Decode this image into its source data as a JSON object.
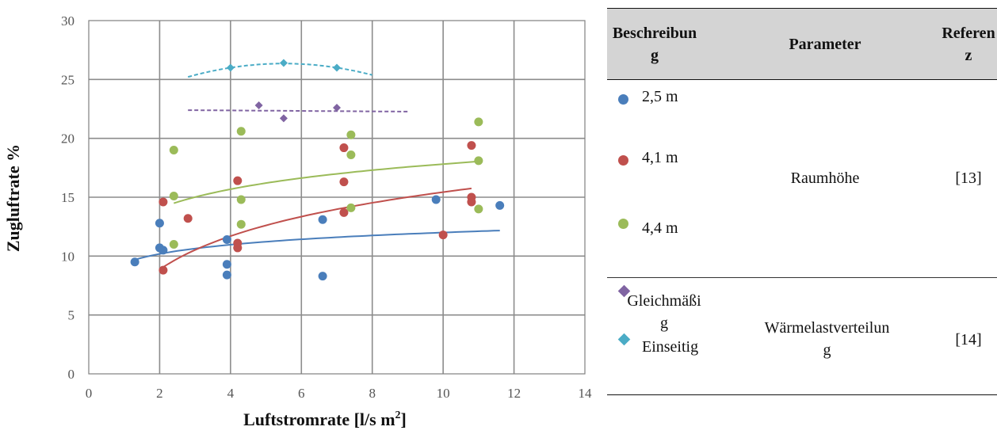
{
  "colors": {
    "blue": "#4a7ebb",
    "red": "#c0504d",
    "green": "#9bbb59",
    "purple": "#8064a2",
    "cyan": "#4bacc6"
  },
  "chart_data": {
    "type": "scatter",
    "xlabel": "Luftstromrate [l/s m",
    "xlabel_sup": "2",
    "xlabel_end": "]",
    "ylabel": "Zugluftrate %",
    "xlim": [
      0,
      14
    ],
    "ylim": [
      0,
      30
    ],
    "xticks": [
      "0",
      "2",
      "4",
      "6",
      "8",
      "10",
      "12",
      "14"
    ],
    "yticks": [
      "0",
      "5",
      "10",
      "15",
      "20",
      "25",
      "30"
    ],
    "grid": true,
    "series": [
      {
        "name": "2,5 m",
        "color": "#4a7ebb",
        "marker": "circle",
        "points": [
          [
            1.3,
            9.5
          ],
          [
            2.0,
            12.8
          ],
          [
            2.0,
            10.7
          ],
          [
            2.1,
            10.5
          ],
          [
            3.9,
            11.4
          ],
          [
            3.9,
            9.3
          ],
          [
            3.9,
            8.4
          ],
          [
            6.6,
            13.1
          ],
          [
            6.6,
            8.3
          ],
          [
            9.8,
            14.8
          ],
          [
            11.6,
            14.3
          ]
        ],
        "trend": {
          "type": "log",
          "a": 9.4,
          "b": 1.13,
          "x_range": [
            1.3,
            11.6
          ],
          "style": "solid"
        }
      },
      {
        "name": "4,1 m",
        "color": "#c0504d",
        "marker": "circle",
        "points": [
          [
            2.1,
            14.6
          ],
          [
            2.1,
            8.8
          ],
          [
            2.8,
            13.2
          ],
          [
            4.2,
            16.4
          ],
          [
            4.2,
            11.1
          ],
          [
            4.2,
            10.7
          ],
          [
            7.2,
            19.2
          ],
          [
            7.2,
            16.3
          ],
          [
            7.2,
            13.7
          ],
          [
            10.0,
            11.8
          ],
          [
            10.8,
            19.4
          ],
          [
            10.8,
            15.0
          ],
          [
            10.8,
            14.6
          ]
        ],
        "trend": {
          "type": "log",
          "a": 6.04,
          "b": 4.08,
          "x_range": [
            2.1,
            10.8
          ],
          "style": "solid"
        }
      },
      {
        "name": "4,4 m",
        "color": "#9bbb59",
        "marker": "circle",
        "points": [
          [
            2.4,
            19.0
          ],
          [
            2.4,
            15.1
          ],
          [
            2.4,
            11.0
          ],
          [
            4.3,
            20.6
          ],
          [
            4.3,
            14.8
          ],
          [
            4.3,
            12.7
          ],
          [
            7.4,
            20.3
          ],
          [
            7.4,
            18.6
          ],
          [
            7.4,
            14.1
          ],
          [
            11.0,
            21.4
          ],
          [
            11.0,
            18.1
          ],
          [
            11.0,
            14.0
          ]
        ],
        "trend": {
          "type": "log",
          "a": 12.45,
          "b": 2.33,
          "x_range": [
            2.4,
            11.0
          ],
          "style": "solid"
        }
      },
      {
        "name": "Gleichmäßig",
        "color": "#8064a2",
        "marker": "diamond",
        "points": [
          [
            4.8,
            22.8
          ],
          [
            5.5,
            21.7
          ],
          [
            7.0,
            22.6
          ]
        ],
        "trend": {
          "type": "linear",
          "a": 22.45,
          "b": -0.02,
          "x_range": [
            2.8,
            9.0
          ],
          "style": "dashed"
        }
      },
      {
        "name": "Einseitig",
        "color": "#4bacc6",
        "marker": "diamond",
        "points": [
          [
            4.0,
            26.0
          ],
          [
            5.5,
            26.4
          ],
          [
            7.0,
            26.0
          ]
        ],
        "trend": {
          "type": "quadratic",
          "a": 26.35,
          "c": -0.1556,
          "x_center": 5.5,
          "x_range": [
            2.8,
            8.0
          ],
          "style": "dashed"
        }
      }
    ]
  },
  "legend_table": {
    "headers": {
      "beschreibung": "Beschreibun\ng",
      "parameter": "Parameter",
      "referenz": "Referen\nz"
    },
    "groups": [
      {
        "items": [
          "2,5 m",
          "4,1 m",
          "4,4 m"
        ],
        "parameter": "Raumhöhe",
        "referenz": "[13]"
      },
      {
        "items": [
          "Gleichmäßi\ng",
          "Einseitig"
        ],
        "parameter": "Wärmelastverteilun\ng",
        "referenz": "[14]"
      }
    ]
  }
}
